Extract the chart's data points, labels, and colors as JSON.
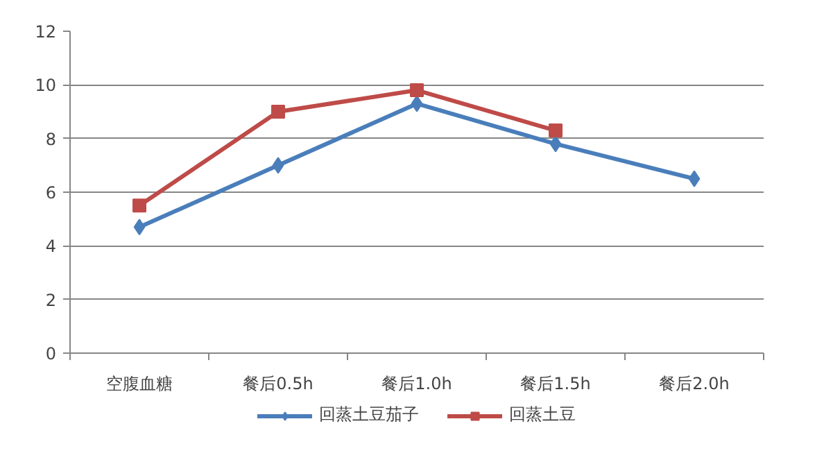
{
  "chart_data": {
    "type": "line",
    "categories": [
      "空腹血糖",
      "餐后0.5h",
      "餐后1.0h",
      "餐后1.5h",
      "餐后2.0h"
    ],
    "series": [
      {
        "name": "回蒸土豆茄子",
        "color": "#4a7ebb",
        "marker": "diamond",
        "values": [
          4.7,
          7.0,
          9.3,
          7.8,
          6.5
        ]
      },
      {
        "name": "回蒸土豆",
        "color": "#be4b48",
        "marker": "square",
        "values": [
          5.5,
          9.0,
          9.8,
          8.3,
          null
        ]
      }
    ],
    "ylim": [
      0,
      12
    ],
    "yticks": [
      0,
      2,
      4,
      6,
      8,
      10,
      12
    ],
    "grid": "y",
    "legend": "bottom"
  }
}
